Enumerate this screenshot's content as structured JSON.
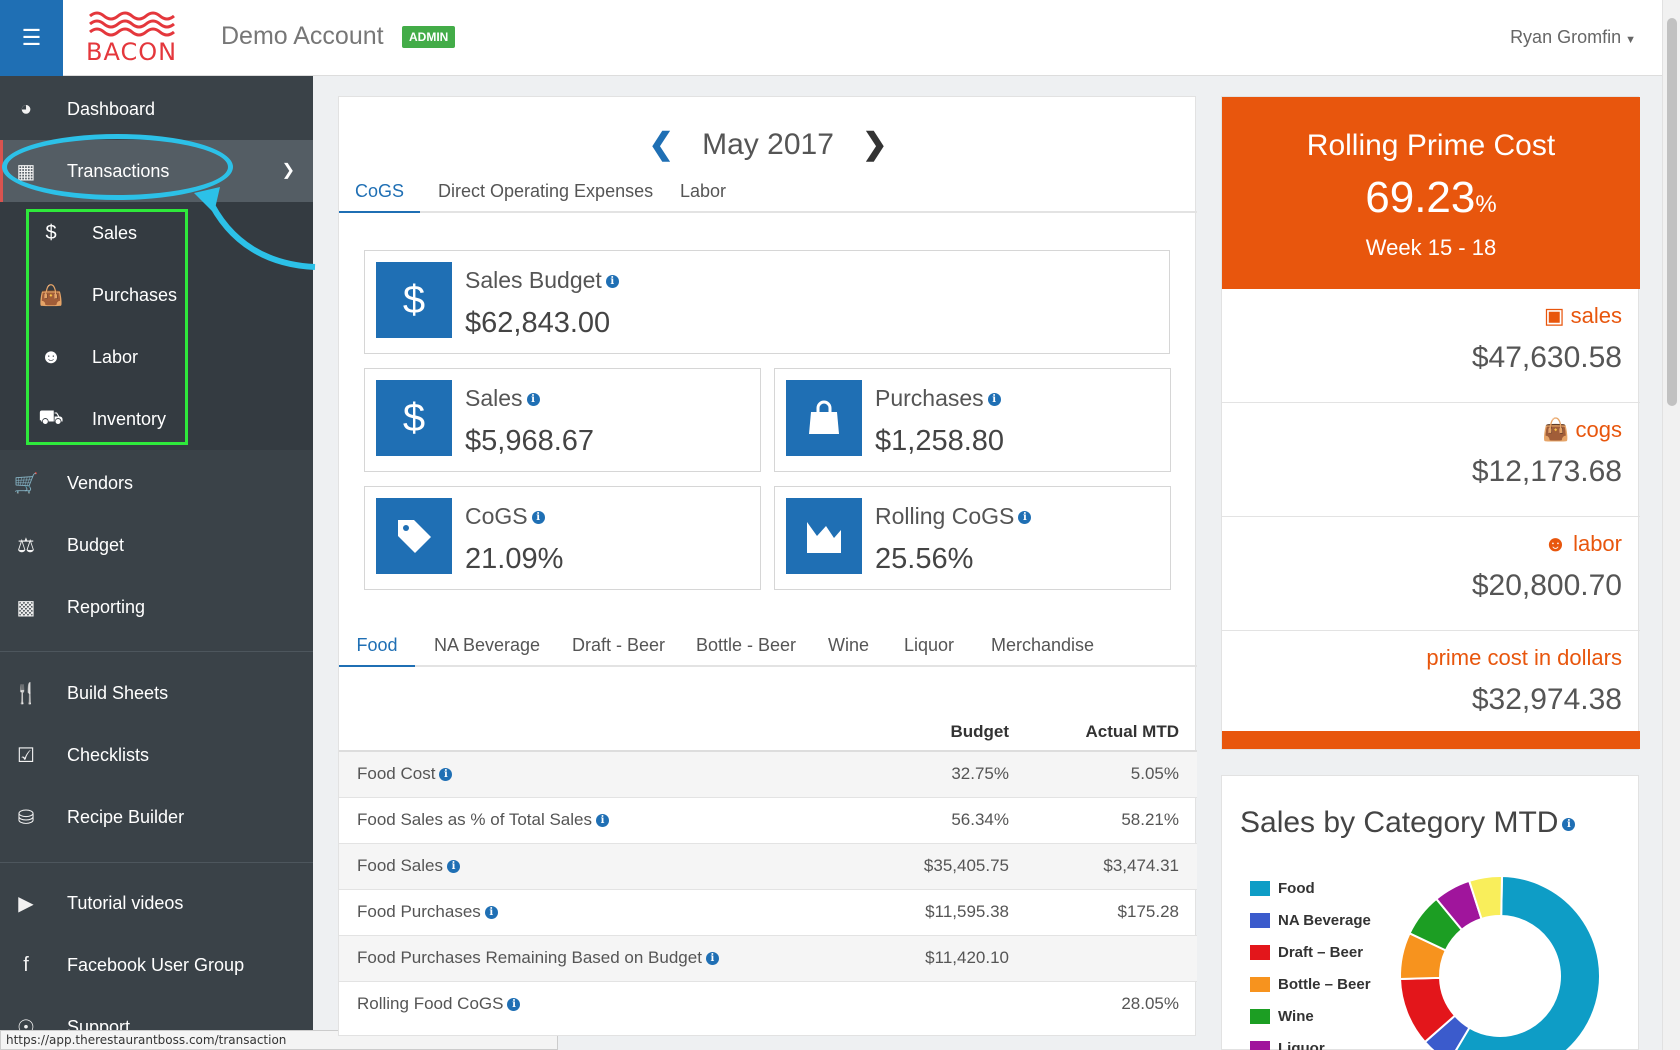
{
  "header": {
    "logo_text": "BACON",
    "account_title": "Demo Account",
    "admin_badge": "ADMIN",
    "user_name": "Ryan Gromfin"
  },
  "sidebar": {
    "items": [
      {
        "label": "Dashboard",
        "icon": "dashboard-icon"
      },
      {
        "label": "Transactions",
        "icon": "calendar-grid-icon"
      },
      {
        "label": "Vendors",
        "icon": "cart-icon"
      },
      {
        "label": "Budget",
        "icon": "balance-scale-icon"
      },
      {
        "label": "Reporting",
        "icon": "bar-chart-icon"
      },
      {
        "label": "Build Sheets",
        "icon": "utensils-icon"
      },
      {
        "label": "Checklists",
        "icon": "checkbox-icon"
      },
      {
        "label": "Recipe Builder",
        "icon": "basket-icon"
      },
      {
        "label": "Tutorial videos",
        "icon": "video-camera-icon"
      },
      {
        "label": "Facebook User Group",
        "icon": "facebook-icon"
      },
      {
        "label": "Support",
        "icon": "support-icon"
      }
    ],
    "sub_items": [
      {
        "label": "Sales",
        "icon": "dollar-icon"
      },
      {
        "label": "Purchases",
        "icon": "shopping-bag-icon"
      },
      {
        "label": "Labor",
        "icon": "users-icon"
      },
      {
        "label": "Inventory",
        "icon": "truck-icon"
      }
    ]
  },
  "status_url": "https://app.therestaurantboss.com/transaction",
  "main": {
    "month": "May 2017",
    "tabs": [
      "CoGS",
      "Direct Operating Expenses",
      "Labor"
    ],
    "kpis": {
      "sales_budget": {
        "label": "Sales Budget",
        "value": "$62,843.00"
      },
      "sales": {
        "label": "Sales",
        "value": "$5,968.67"
      },
      "purchases": {
        "label": "Purchases",
        "value": "$1,258.80"
      },
      "cogs": {
        "label": "CoGS",
        "value": "21.09%"
      },
      "rolling_cogs": {
        "label": "Rolling CoGS",
        "value": "25.56%"
      }
    },
    "category_tabs": [
      "Food",
      "NA Beverage",
      "Draft - Beer",
      "Bottle - Beer",
      "Wine",
      "Liquor",
      "Merchandise"
    ],
    "table": {
      "headers": {
        "budget": "Budget",
        "actual": "Actual MTD"
      },
      "rows": [
        {
          "name": "Food Cost",
          "budget": "32.75%",
          "actual": "5.05%"
        },
        {
          "name": "Food Sales as % of Total Sales",
          "budget": "56.34%",
          "actual": "58.21%"
        },
        {
          "name": "Food Sales",
          "budget": "$35,405.75",
          "actual": "$3,474.31"
        },
        {
          "name": "Food Purchases",
          "budget": "$11,595.38",
          "actual": "$175.28"
        },
        {
          "name": "Food Purchases Remaining Based on Budget",
          "budget": "$11,420.10",
          "actual": ""
        },
        {
          "name": "Rolling Food CoGS",
          "budget": "",
          "actual": "28.05%"
        }
      ]
    }
  },
  "prime": {
    "title": "Rolling Prime Cost",
    "value": "69.23",
    "value_unit": "%",
    "week": "Week 15 - 18",
    "rows": [
      {
        "label": "sales",
        "value": "$47,630.58",
        "icon": "money-icon"
      },
      {
        "label": "cogs",
        "value": "$12,173.68",
        "icon": "shopping-bag-icon"
      },
      {
        "label": "labor",
        "value": "$20,800.70",
        "icon": "users-icon"
      },
      {
        "label": "prime cost in dollars",
        "value": "$32,974.38",
        "icon": ""
      }
    ]
  },
  "sales_by_category": {
    "title": "Sales by Category MTD",
    "legend": [
      {
        "label": "Food",
        "color": "#0e9dc6"
      },
      {
        "label": "NA Beverage",
        "color": "#3b5bcc"
      },
      {
        "label": "Draft – Beer",
        "color": "#e3161b"
      },
      {
        "label": "Bottle – Beer",
        "color": "#f7931e"
      },
      {
        "label": "Wine",
        "color": "#1c9e23"
      },
      {
        "label": "Liquor",
        "color": "#a0159c"
      }
    ]
  },
  "chart_data": {
    "type": "pie",
    "title": "Sales by Category MTD",
    "categories": [
      "Food",
      "NA Beverage",
      "Draft – Beer",
      "Bottle – Beer",
      "Wine",
      "Liquor",
      ""
    ],
    "values": [
      58.2,
      5,
      11,
      7.5,
      7,
      6,
      5.3
    ],
    "colors": [
      "#0e9dc6",
      "#3b5bcc",
      "#e3161b",
      "#f7931e",
      "#1c9e23",
      "#a0159c",
      "#f9ee5b"
    ]
  }
}
